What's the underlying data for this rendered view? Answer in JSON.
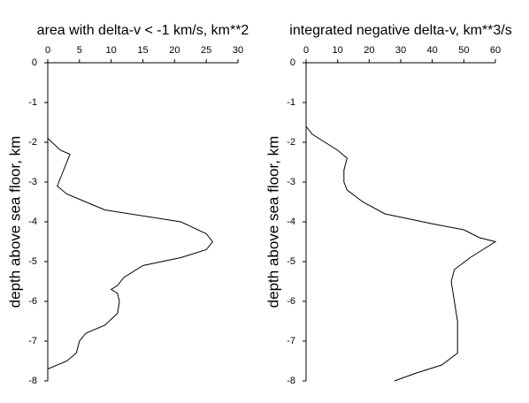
{
  "chart_data": [
    {
      "type": "line",
      "title": "area with delta-v < -1 km/s, km**2",
      "ylabel": "depth above sea floor, km",
      "x": [
        0,
        2,
        3.5,
        3,
        2,
        1.5,
        3,
        6,
        9,
        21,
        25,
        26,
        25,
        21,
        15,
        12,
        11,
        10,
        11,
        11.3,
        11,
        9,
        6,
        5,
        4.5,
        3,
        0
      ],
      "y": [
        -1.9,
        -2.2,
        -2.3,
        -2.5,
        -2.9,
        -3.1,
        -3.3,
        -3.5,
        -3.7,
        -4.0,
        -4.3,
        -4.5,
        -4.7,
        -4.9,
        -5.1,
        -5.4,
        -5.6,
        -5.7,
        -5.8,
        -6.0,
        -6.3,
        -6.6,
        -6.8,
        -7.0,
        -7.3,
        -7.5,
        -7.7
      ],
      "color": "#000000",
      "xlim": [
        0,
        30
      ],
      "xticks": [
        0,
        5,
        10,
        15,
        20,
        25,
        30
      ],
      "ylim": [
        -8,
        0
      ],
      "yticks": [
        0,
        -1,
        -2,
        -3,
        -4,
        -5,
        -6,
        -7,
        -8
      ]
    },
    {
      "type": "line",
      "title": "integrated negative delta-v, km**3/s",
      "ylabel": "depth above sea floor, km",
      "x": [
        0,
        2,
        6,
        10,
        13,
        12,
        12,
        13,
        18,
        25,
        40,
        50,
        55,
        60,
        56,
        52,
        47,
        46,
        47,
        48,
        48,
        48,
        43,
        35,
        28
      ],
      "y": [
        -1.6,
        -1.8,
        -2.0,
        -2.2,
        -2.4,
        -2.7,
        -3.0,
        -3.2,
        -3.5,
        -3.8,
        -4.05,
        -4.2,
        -4.4,
        -4.5,
        -4.7,
        -4.9,
        -5.2,
        -5.5,
        -6.0,
        -6.5,
        -7.0,
        -7.3,
        -7.6,
        -7.8,
        -8.0
      ],
      "color": "#000000",
      "xlim": [
        0,
        60
      ],
      "xticks": [
        0,
        10,
        20,
        30,
        40,
        50,
        60
      ],
      "ylim": [
        -8,
        0
      ],
      "yticks": [
        0,
        -1,
        -2,
        -3,
        -4,
        -5,
        -6,
        -7,
        -8
      ]
    }
  ]
}
